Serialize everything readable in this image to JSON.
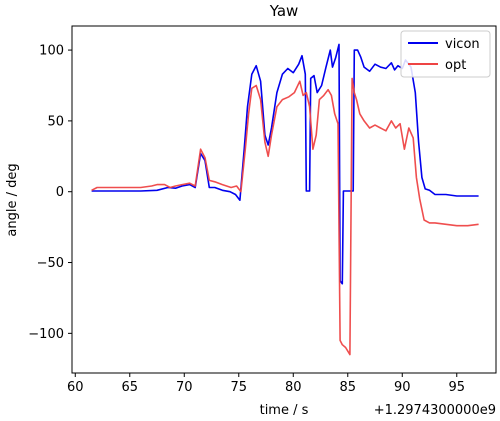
{
  "chart_data": {
    "type": "line",
    "title": "Yaw",
    "xlabel": "time / s",
    "ylabel": "angle / deg",
    "x_offset_label": "+1.2974300000e9",
    "xlim": [
      59.7,
      98.6
    ],
    "ylim": [
      -128,
      117
    ],
    "xticks": [
      60,
      65,
      70,
      75,
      80,
      85,
      90,
      95
    ],
    "yticks": [
      -100,
      -50,
      0,
      50,
      100
    ],
    "grid": false,
    "legend_position": "top-right",
    "series": [
      {
        "name": "vicon",
        "color": "#0000ee",
        "points": [
          [
            61.5,
            0.5
          ],
          [
            63.0,
            0.5
          ],
          [
            66.0,
            0.5
          ],
          [
            67.5,
            1
          ],
          [
            68.5,
            3
          ],
          [
            69.2,
            2.5
          ],
          [
            69.8,
            4
          ],
          [
            70.5,
            5
          ],
          [
            71.0,
            3
          ],
          [
            71.5,
            27
          ],
          [
            71.9,
            22
          ],
          [
            72.3,
            3
          ],
          [
            72.8,
            3
          ],
          [
            73.5,
            1
          ],
          [
            74.2,
            0
          ],
          [
            74.7,
            -2
          ],
          [
            75.1,
            -6
          ],
          [
            75.5,
            30
          ],
          [
            75.8,
            60
          ],
          [
            76.2,
            83
          ],
          [
            76.6,
            89
          ],
          [
            77.0,
            78
          ],
          [
            77.4,
            40
          ],
          [
            77.7,
            33
          ],
          [
            78.0,
            45
          ],
          [
            78.5,
            70
          ],
          [
            79.0,
            83
          ],
          [
            79.5,
            87
          ],
          [
            80.0,
            84
          ],
          [
            80.5,
            90
          ],
          [
            80.8,
            96
          ],
          [
            81.1,
            83
          ],
          [
            81.2,
            0.5
          ],
          [
            81.5,
            0.5
          ],
          [
            81.6,
            80
          ],
          [
            81.9,
            82
          ],
          [
            82.2,
            70
          ],
          [
            82.6,
            75
          ],
          [
            83.0,
            88
          ],
          [
            83.4,
            100
          ],
          [
            83.6,
            88
          ],
          [
            83.9,
            95
          ],
          [
            84.2,
            104
          ],
          [
            84.3,
            -63
          ],
          [
            84.5,
            -65
          ],
          [
            84.6,
            0.5
          ],
          [
            85.5,
            0.5
          ],
          [
            85.6,
            100
          ],
          [
            85.9,
            100
          ],
          [
            86.2,
            95
          ],
          [
            86.5,
            88
          ],
          [
            87.0,
            85
          ],
          [
            87.5,
            90
          ],
          [
            88.0,
            88
          ],
          [
            88.5,
            87
          ],
          [
            89.0,
            91
          ],
          [
            89.3,
            86
          ],
          [
            89.6,
            89
          ],
          [
            90.0,
            87
          ],
          [
            90.3,
            93
          ],
          [
            90.8,
            88
          ],
          [
            91.2,
            70
          ],
          [
            91.5,
            35
          ],
          [
            91.8,
            10
          ],
          [
            92.1,
            2
          ],
          [
            92.5,
            1
          ],
          [
            93.0,
            -2
          ],
          [
            94.0,
            -2
          ],
          [
            95.0,
            -3
          ],
          [
            96.0,
            -3
          ],
          [
            97.0,
            -3
          ]
        ]
      },
      {
        "name": "opt",
        "color": "#ee4444",
        "points": [
          [
            61.5,
            1
          ],
          [
            62.0,
            3
          ],
          [
            63.0,
            3
          ],
          [
            65.0,
            3
          ],
          [
            66.0,
            3
          ],
          [
            67.0,
            4
          ],
          [
            67.5,
            5
          ],
          [
            68.2,
            5
          ],
          [
            68.7,
            3
          ],
          [
            69.2,
            4
          ],
          [
            69.8,
            5
          ],
          [
            70.5,
            6
          ],
          [
            71.0,
            4
          ],
          [
            71.5,
            30
          ],
          [
            71.9,
            24
          ],
          [
            72.3,
            8
          ],
          [
            72.8,
            7
          ],
          [
            73.5,
            5
          ],
          [
            74.3,
            3
          ],
          [
            74.8,
            4
          ],
          [
            75.2,
            0
          ],
          [
            75.6,
            30
          ],
          [
            75.9,
            55
          ],
          [
            76.2,
            73
          ],
          [
            76.6,
            75
          ],
          [
            77.0,
            65
          ],
          [
            77.4,
            35
          ],
          [
            77.7,
            25
          ],
          [
            78.0,
            40
          ],
          [
            78.5,
            60
          ],
          [
            79.0,
            65
          ],
          [
            79.6,
            67
          ],
          [
            80.1,
            70
          ],
          [
            80.6,
            78
          ],
          [
            80.9,
            68
          ],
          [
            81.2,
            70
          ],
          [
            81.5,
            60
          ],
          [
            81.8,
            30
          ],
          [
            82.1,
            40
          ],
          [
            82.4,
            65
          ],
          [
            82.8,
            68
          ],
          [
            83.2,
            72
          ],
          [
            83.5,
            68
          ],
          [
            83.8,
            55
          ],
          [
            84.1,
            48
          ],
          [
            84.3,
            -105
          ],
          [
            84.5,
            -108
          ],
          [
            84.8,
            -110
          ],
          [
            85.2,
            -115
          ],
          [
            85.4,
            80
          ],
          [
            85.6,
            70
          ],
          [
            85.8,
            65
          ],
          [
            86.1,
            55
          ],
          [
            86.5,
            50
          ],
          [
            87.0,
            45
          ],
          [
            87.5,
            47
          ],
          [
            88.0,
            45
          ],
          [
            88.5,
            43
          ],
          [
            89.0,
            50
          ],
          [
            89.4,
            45
          ],
          [
            89.8,
            48
          ],
          [
            90.2,
            30
          ],
          [
            90.6,
            45
          ],
          [
            91.0,
            38
          ],
          [
            91.3,
            10
          ],
          [
            91.6,
            -5
          ],
          [
            92.0,
            -20
          ],
          [
            92.5,
            -22
          ],
          [
            93.0,
            -22
          ],
          [
            94.0,
            -23
          ],
          [
            95.0,
            -24
          ],
          [
            96.0,
            -24
          ],
          [
            97.0,
            -23
          ]
        ]
      }
    ]
  }
}
